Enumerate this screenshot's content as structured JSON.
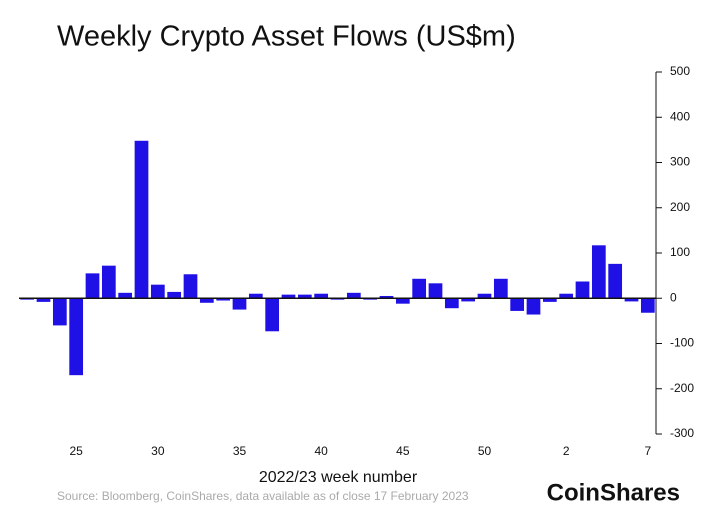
{
  "chart_data": {
    "type": "bar",
    "title": "Weekly Crypto Asset Flows (US$m)",
    "x_label": "2022/23 week number",
    "source": "Source: Bloomberg, CoinShares, data available as of close 17 February 2023",
    "brand": "CoinShares",
    "categories": [
      null,
      null,
      null,
      "25",
      null,
      null,
      null,
      null,
      "30",
      null,
      null,
      null,
      null,
      "35",
      null,
      null,
      null,
      null,
      "40",
      null,
      null,
      null,
      null,
      "45",
      null,
      null,
      null,
      null,
      "50",
      null,
      null,
      null,
      null,
      "2",
      null,
      null,
      null,
      null,
      "7"
    ],
    "values": [
      -3,
      -8,
      -60,
      -170,
      55,
      72,
      12,
      348,
      30,
      14,
      53,
      -10,
      -5,
      -25,
      10,
      -73,
      8,
      8,
      10,
      -3,
      12,
      -3,
      5,
      -12,
      43,
      33,
      -22,
      -7,
      10,
      43,
      -28,
      -36,
      -8,
      10,
      37,
      117,
      76,
      -7,
      -32
    ],
    "color": "#1f10e6",
    "ylim": [
      -300,
      500
    ],
    "yticks": [
      -300,
      -200,
      -100,
      0,
      100,
      200,
      300,
      400,
      500
    ]
  }
}
